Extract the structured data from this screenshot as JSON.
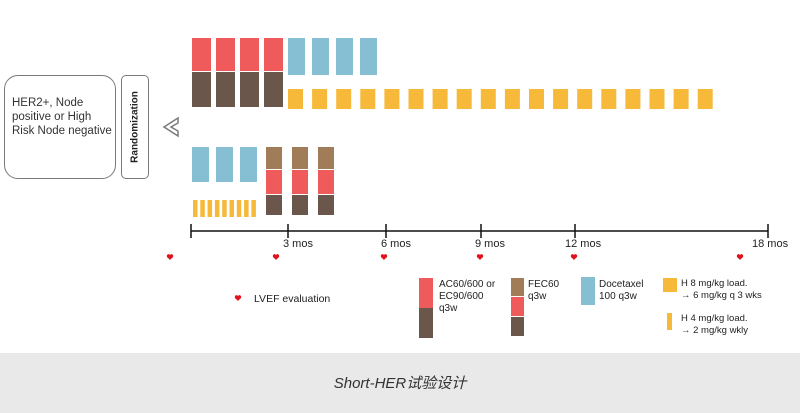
{
  "population": {
    "label": "HER2+, Node positive or High Risk Node negative"
  },
  "randomization": {
    "label": "Randomization"
  },
  "timeline": {
    "ticks": [
      {
        "label": "3 mos"
      },
      {
        "label": "6 mos"
      },
      {
        "label": "9 mos"
      },
      {
        "label": "12 mos"
      },
      {
        "label": "18 mos"
      }
    ]
  },
  "legend": {
    "lvef": "LVEF evaluation",
    "ac_line1": "AC60/600 or",
    "ac_line2": "EC90/600",
    "ac_line3": "q3w",
    "fec_line1": "FEC60",
    "fec_line2": "q3w",
    "doc_line1": "Docetaxel",
    "doc_line2": "100 q3w",
    "hload_line1": "H 8 mg/kg load.",
    "hload_line2": "→ 6 mg/kg q 3 wks",
    "hwk_line1": "H 4 mg/kg load.",
    "hwk_line2": "→ 2 mg/kg wkly"
  },
  "caption": "Short-HER试验设计",
  "colors": {
    "ac_red": "#ef5a5a",
    "ac_brown": "#6b564c",
    "fec_tan": "#a07d58",
    "docetaxel_blue": "#86bfd3",
    "trastuzumab_yellow": "#f6b93a",
    "heart_red": "#e0121c",
    "axis": "#111111"
  },
  "icons": {
    "heart": "heart-icon",
    "arrow": "chevron-left-icon"
  }
}
